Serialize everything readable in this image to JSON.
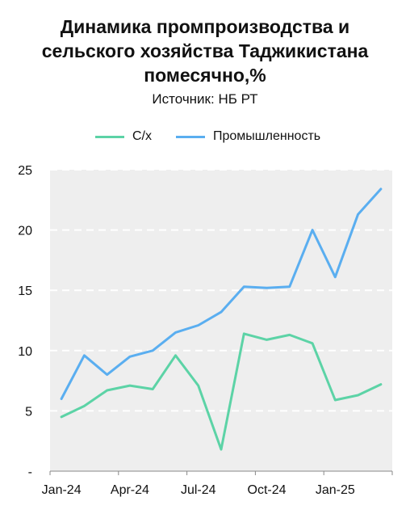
{
  "chart_data": {
    "type": "line",
    "title_lines": [
      "Динамика промпроизводства и",
      "сельского хозяйства Таджикистана",
      "помесячно,%"
    ],
    "subtitle": "Источник: НБ РТ",
    "x": [
      "Jan-24",
      "Feb-24",
      "Mar-24",
      "Apr-24",
      "May-24",
      "Jun-24",
      "Jul-24",
      "Aug-24",
      "Sep-24",
      "Oct-24",
      "Nov-24",
      "Dec-24",
      "Jan-25",
      "Feb-25",
      "Mar-25"
    ],
    "x_tick_labels": [
      "Jan-24",
      "Apr-24",
      "Jul-24",
      "Oct-24",
      "Jan-25"
    ],
    "y_tick_labels": [
      "-",
      "5",
      "10",
      "15",
      "20",
      "25"
    ],
    "ylim": [
      0,
      25
    ],
    "grid": true,
    "legend_position": "top",
    "series": [
      {
        "name": "С/х",
        "color": "#5cd3a6",
        "values": [
          4.5,
          5.4,
          6.7,
          7.1,
          6.8,
          9.6,
          7.1,
          1.8,
          11.4,
          10.9,
          11.3,
          10.6,
          5.9,
          6.3,
          7.2
        ]
      },
      {
        "name": "Промышленность",
        "color": "#5aaef0",
        "values": [
          6.0,
          9.6,
          8.0,
          9.5,
          10.0,
          11.5,
          12.1,
          13.2,
          15.3,
          15.2,
          15.3,
          20.0,
          16.1,
          21.3,
          23.4
        ]
      }
    ]
  }
}
